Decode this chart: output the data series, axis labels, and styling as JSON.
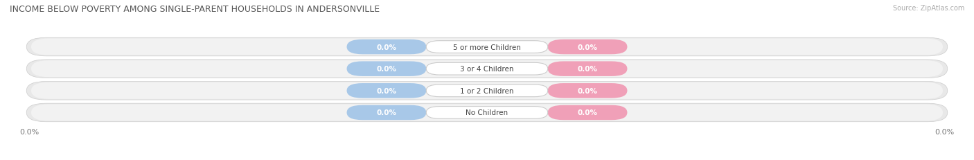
{
  "title": "INCOME BELOW POVERTY AMONG SINGLE-PARENT HOUSEHOLDS IN ANDERSONVILLE",
  "source": "Source: ZipAtlas.com",
  "categories": [
    "No Children",
    "1 or 2 Children",
    "3 or 4 Children",
    "5 or more Children"
  ],
  "single_father_values": [
    0.0,
    0.0,
    0.0,
    0.0
  ],
  "single_mother_values": [
    0.0,
    0.0,
    0.0,
    0.0
  ],
  "father_color": "#a8c8e8",
  "mother_color": "#f0a0b8",
  "row_bg_color": "#e8e8e8",
  "row_inner_color": "#f2f2f2",
  "title_fontsize": 9,
  "source_fontsize": 7,
  "label_fontsize": 7.5,
  "axis_fontsize": 8,
  "legend_fontsize": 8
}
